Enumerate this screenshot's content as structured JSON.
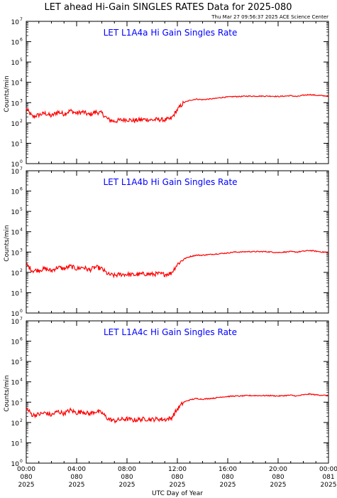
{
  "header": {
    "title": "LET ahead Hi-Gain SINGLES RATES Data for 2025-080",
    "timestamp": "Thu Mar 27 09:56:37 2025 ACE Science Center"
  },
  "xaxis": {
    "label": "UTC Day of Year",
    "ticks": [
      {
        "hour": 0,
        "time": "00:00",
        "doy": "080",
        "year": "2025"
      },
      {
        "hour": 4,
        "time": "04:00",
        "doy": "080",
        "year": "2025"
      },
      {
        "hour": 8,
        "time": "08:00",
        "doy": "080",
        "year": "2025"
      },
      {
        "hour": 12,
        "time": "12:00",
        "doy": "080",
        "year": "2025"
      },
      {
        "hour": 16,
        "time": "16:00",
        "doy": "080",
        "year": "2025"
      },
      {
        "hour": 20,
        "time": "20:00",
        "doy": "080",
        "year": "2025"
      },
      {
        "hour": 24,
        "time": "00:00",
        "doy": "081",
        "year": "2025"
      }
    ]
  },
  "yaxis": {
    "label": "Counts/min",
    "tick_exponents": [
      0,
      1,
      2,
      3,
      4,
      5,
      6,
      7
    ]
  },
  "colors": {
    "line": "#ff0000",
    "panel_title": "#0000ff",
    "axes": "#000000"
  },
  "chart_data": [
    {
      "type": "line",
      "title": "LET L1A4a Hi Gain Singles Rate",
      "xlabel": "",
      "ylabel": "Counts/min",
      "xlim": [
        0,
        24
      ],
      "ylim": [
        1,
        10000000
      ],
      "yscale": "log",
      "grid": false,
      "x": [
        0,
        0.5,
        1,
        1.5,
        2,
        2.5,
        3,
        3.5,
        4,
        4.5,
        5,
        5.5,
        6,
        6.5,
        7,
        7.5,
        8,
        8.5,
        9,
        9.5,
        10,
        10.5,
        11,
        11.5,
        12,
        12.5,
        13,
        13.5,
        14,
        14.5,
        15,
        15.5,
        16,
        16.5,
        17,
        17.5,
        18,
        18.5,
        19,
        19.5,
        20,
        20.5,
        21,
        21.5,
        22,
        22.5,
        23,
        23.5,
        24
      ],
      "series": [
        {
          "values": [
            500,
            200,
            250,
            300,
            220,
            350,
            280,
            400,
            300,
            350,
            250,
            350,
            300,
            150,
            120,
            140,
            150,
            130,
            140,
            150,
            140,
            150,
            140,
            160,
            450,
            1000,
            1300,
            1500,
            1400,
            1500,
            1600,
            1800,
            1900,
            2000,
            2000,
            2100,
            2100,
            2100,
            2100,
            2100,
            2000,
            2100,
            2200,
            2000,
            2300,
            2500,
            2300,
            2200,
            2100
          ]
        }
      ]
    },
    {
      "type": "line",
      "title": "LET L1A4b Hi Gain Singles Rate",
      "xlabel": "",
      "ylabel": "Counts/min",
      "xlim": [
        0,
        24
      ],
      "ylim": [
        1,
        10000000
      ],
      "yscale": "log",
      "grid": false,
      "x": [
        0,
        0.5,
        1,
        1.5,
        2,
        2.5,
        3,
        3.5,
        4,
        4.5,
        5,
        5.5,
        6,
        6.5,
        7,
        7.5,
        8,
        8.5,
        9,
        9.5,
        10,
        10.5,
        11,
        11.5,
        12,
        12.5,
        13,
        13.5,
        14,
        14.5,
        15,
        15.5,
        16,
        16.5,
        17,
        17.5,
        18,
        18.5,
        19,
        19.5,
        20,
        20.5,
        21,
        21.5,
        22,
        22.5,
        23,
        23.5,
        24
      ],
      "series": [
        {
          "values": [
            250,
            120,
            130,
            150,
            120,
            180,
            150,
            200,
            150,
            180,
            130,
            180,
            150,
            80,
            70,
            80,
            80,
            75,
            80,
            85,
            80,
            85,
            80,
            90,
            250,
            450,
            600,
            700,
            700,
            750,
            800,
            850,
            900,
            1000,
            1000,
            1050,
            1050,
            1050,
            1050,
            1000,
            950,
            1000,
            1050,
            1000,
            1100,
            1200,
            1100,
            1000,
            950
          ]
        }
      ]
    },
    {
      "type": "line",
      "title": "LET L1A4c Hi Gain Singles Rate",
      "xlabel": "",
      "ylabel": "Counts/min",
      "xlim": [
        0,
        24
      ],
      "ylim": [
        1,
        10000000
      ],
      "yscale": "log",
      "grid": false,
      "x": [
        0,
        0.5,
        1,
        1.5,
        2,
        2.5,
        3,
        3.5,
        4,
        4.5,
        5,
        5.5,
        6,
        6.5,
        7,
        7.5,
        8,
        8.5,
        9,
        9.5,
        10,
        10.5,
        11,
        11.5,
        12,
        12.5,
        13,
        13.5,
        14,
        14.5,
        15,
        15.5,
        16,
        16.5,
        17,
        17.5,
        18,
        18.5,
        19,
        19.5,
        20,
        20.5,
        21,
        21.5,
        22,
        22.5,
        23,
        23.5,
        24
      ],
      "series": [
        {
          "values": [
            500,
            230,
            250,
            300,
            230,
            350,
            280,
            400,
            300,
            350,
            260,
            350,
            300,
            150,
            120,
            140,
            150,
            130,
            140,
            150,
            140,
            150,
            140,
            160,
            450,
            1000,
            1300,
            1500,
            1400,
            1500,
            1600,
            1800,
            1900,
            2000,
            2000,
            2100,
            2100,
            2100,
            2100,
            2100,
            2000,
            2100,
            2200,
            2000,
            2300,
            2500,
            2300,
            2200,
            2100
          ]
        }
      ]
    }
  ]
}
